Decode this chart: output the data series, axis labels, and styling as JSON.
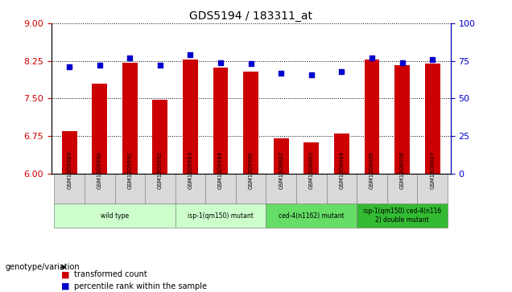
{
  "title": "GDS5194 / 183311_at",
  "samples": [
    "GSM1305989",
    "GSM1305990",
    "GSM1305991",
    "GSM1305992",
    "GSM1305993",
    "GSM1305994",
    "GSM1305995",
    "GSM1306002",
    "GSM1306003",
    "GSM1306004",
    "GSM1306005",
    "GSM1306006",
    "GSM1306007"
  ],
  "bar_values": [
    6.85,
    7.8,
    8.22,
    7.48,
    8.28,
    8.12,
    8.03,
    6.7,
    6.62,
    6.8,
    8.28,
    8.17,
    8.2
  ],
  "dot_values": [
    71,
    72,
    77,
    72,
    79,
    74,
    73,
    67,
    66,
    68,
    77,
    74,
    76
  ],
  "ylim_left": [
    6,
    9
  ],
  "ylim_right": [
    0,
    100
  ],
  "yticks_left": [
    6,
    6.75,
    7.5,
    8.25,
    9
  ],
  "yticks_right": [
    0,
    25,
    50,
    75,
    100
  ],
  "bar_color": "#cc0000",
  "dot_color": "#0000cc",
  "groups": [
    {
      "label": "wild type",
      "start": 0,
      "end": 3,
      "color": "#ccffcc"
    },
    {
      "label": "isp-1(qm150) mutant",
      "start": 4,
      "end": 6,
      "color": "#ccffcc"
    },
    {
      "label": "ced-4(n1162) mutant",
      "start": 7,
      "end": 9,
      "color": "#00cc00"
    },
    {
      "label": "isp-1(qm150) ced-4(n116\n2) double mutant",
      "start": 10,
      "end": 12,
      "color": "#00cc00"
    }
  ],
  "legend_bar_label": "transformed count",
  "legend_dot_label": "percentile rank within the sample",
  "genotype_label": "genotype/variation",
  "grid_color": "#000000",
  "bg_color": "#ffffff",
  "plot_bg": "#ffffff"
}
